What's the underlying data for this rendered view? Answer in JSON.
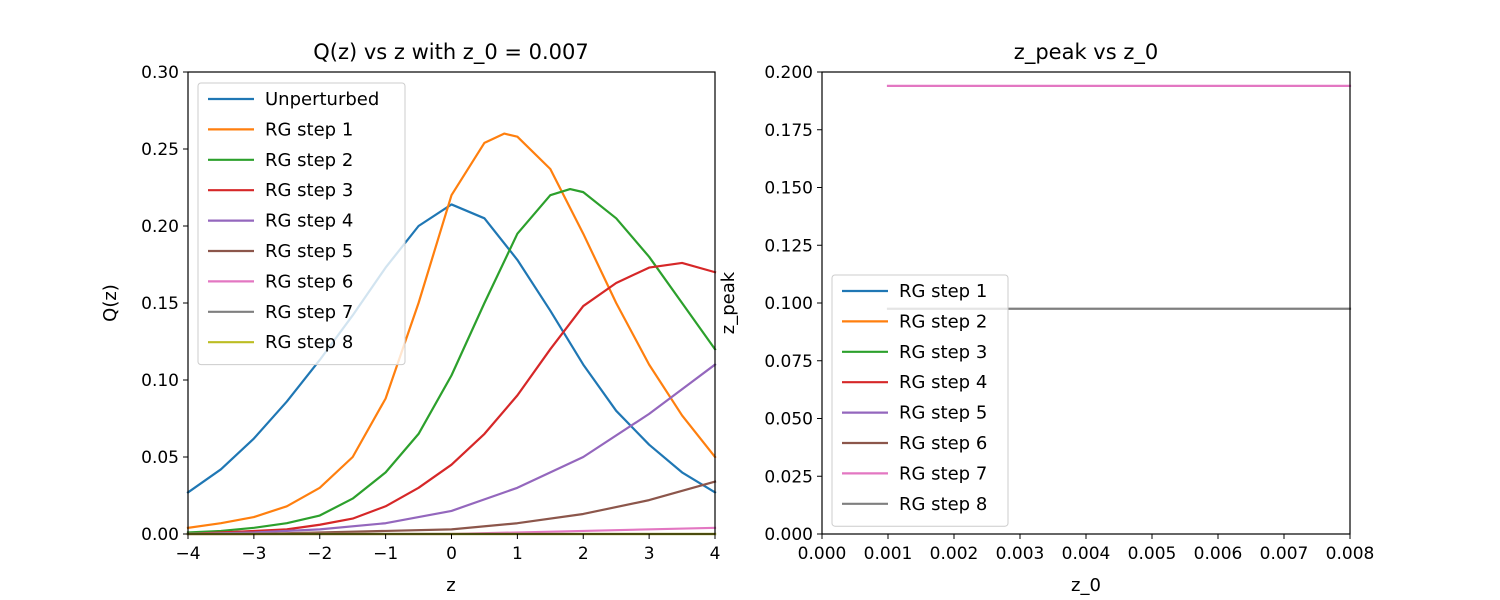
{
  "chart_data": [
    {
      "type": "line",
      "title": "Q(z) vs z with z_0 = 0.007",
      "xlabel": "z",
      "ylabel": "Q(z)",
      "xlim": [
        -4,
        4
      ],
      "ylim": [
        0,
        0.3
      ],
      "xticks": [
        "−4",
        "−3",
        "−2",
        "−1",
        "0",
        "1",
        "2",
        "3",
        "4"
      ],
      "yticks": [
        "0.00",
        "0.05",
        "0.10",
        "0.15",
        "0.20",
        "0.25",
        "0.30"
      ],
      "grid": false,
      "legend_position": "upper-left",
      "series": [
        {
          "name": "Unperturbed",
          "color": "#1f77b4",
          "x": [
            -4,
            -3.5,
            -3,
            -2.5,
            -2,
            -1.5,
            -1,
            -0.5,
            0,
            0.5,
            1,
            1.5,
            2,
            2.5,
            3,
            3.5,
            4
          ],
          "y": [
            0.027,
            0.042,
            0.062,
            0.086,
            0.113,
            0.142,
            0.173,
            0.2,
            0.214,
            0.205,
            0.178,
            0.145,
            0.11,
            0.08,
            0.058,
            0.04,
            0.027
          ]
        },
        {
          "name": "RG step 1",
          "color": "#ff7f0e",
          "x": [
            -4,
            -3.5,
            -3,
            -2.5,
            -2,
            -1.5,
            -1,
            -0.5,
            0,
            0.5,
            0.8,
            1,
            1.5,
            2,
            2.5,
            3,
            3.5,
            4
          ],
          "y": [
            0.004,
            0.007,
            0.011,
            0.018,
            0.03,
            0.05,
            0.088,
            0.15,
            0.22,
            0.254,
            0.26,
            0.258,
            0.237,
            0.195,
            0.15,
            0.11,
            0.077,
            0.05
          ]
        },
        {
          "name": "RG step 2",
          "color": "#2ca02c",
          "x": [
            -4,
            -3.5,
            -3,
            -2.5,
            -2,
            -1.5,
            -1,
            -0.5,
            0,
            0.5,
            1,
            1.5,
            1.8,
            2,
            2.5,
            3,
            3.5,
            4
          ],
          "y": [
            0.001,
            0.002,
            0.004,
            0.007,
            0.012,
            0.023,
            0.04,
            0.065,
            0.103,
            0.15,
            0.195,
            0.22,
            0.224,
            0.222,
            0.205,
            0.18,
            0.15,
            0.12
          ]
        },
        {
          "name": "RG step 3",
          "color": "#d62728",
          "x": [
            -4,
            -3.5,
            -3,
            -2.5,
            -2,
            -1.5,
            -1,
            -0.5,
            0,
            0.5,
            1,
            1.5,
            2,
            2.5,
            3,
            3.5,
            4
          ],
          "y": [
            0.0,
            0.001,
            0.002,
            0.003,
            0.006,
            0.01,
            0.018,
            0.03,
            0.045,
            0.065,
            0.09,
            0.12,
            0.148,
            0.163,
            0.173,
            0.176,
            0.17
          ]
        },
        {
          "name": "RG step 4",
          "color": "#9467bd",
          "x": [
            -4,
            -3,
            -2,
            -1,
            0,
            1,
            2,
            3,
            4
          ],
          "y": [
            0.0,
            0.001,
            0.003,
            0.007,
            0.015,
            0.03,
            0.05,
            0.078,
            0.11
          ]
        },
        {
          "name": "RG step 5",
          "color": "#8c564b",
          "x": [
            -4,
            -3,
            -2,
            -1,
            0,
            1,
            2,
            3,
            4
          ],
          "y": [
            0.0,
            0.0,
            0.001,
            0.002,
            0.003,
            0.007,
            0.013,
            0.022,
            0.034
          ]
        },
        {
          "name": "RG step 6",
          "color": "#e377c2",
          "x": [
            -4,
            -2,
            0,
            2,
            4
          ],
          "y": [
            0.0,
            0.0,
            0.0,
            0.002,
            0.004
          ]
        },
        {
          "name": "RG step 7",
          "color": "#7f7f7f",
          "x": [
            -4,
            0,
            4
          ],
          "y": [
            0.0,
            0.0,
            0.0
          ]
        },
        {
          "name": "RG step 8",
          "color": "#bcbd22",
          "x": [
            -4,
            0,
            4
          ],
          "y": [
            0.0,
            0.0,
            0.0
          ]
        }
      ]
    },
    {
      "type": "line",
      "title": "z_peak vs z_0",
      "xlabel": "z_0",
      "ylabel": "z_peak",
      "xlim": [
        0,
        0.008
      ],
      "ylim": [
        0,
        0.2
      ],
      "xticks": [
        "0.000",
        "0.001",
        "0.002",
        "0.003",
        "0.004",
        "0.005",
        "0.006",
        "0.007",
        "0.008"
      ],
      "yticks": [
        "0.000",
        "0.025",
        "0.050",
        "0.075",
        "0.100",
        "0.125",
        "0.150",
        "0.175",
        "0.200"
      ],
      "grid": false,
      "legend_position": "lower-left",
      "series": [
        {
          "name": "RG step 1",
          "color": "#1f77b4",
          "x": [],
          "y": []
        },
        {
          "name": "RG step 2",
          "color": "#ff7f0e",
          "x": [],
          "y": []
        },
        {
          "name": "RG step 3",
          "color": "#2ca02c",
          "x": [],
          "y": []
        },
        {
          "name": "RG step 4",
          "color": "#d62728",
          "x": [],
          "y": []
        },
        {
          "name": "RG step 5",
          "color": "#9467bd",
          "x": [],
          "y": []
        },
        {
          "name": "RG step 6",
          "color": "#8c564b",
          "x": [],
          "y": []
        },
        {
          "name": "RG step 7",
          "color": "#e377c2",
          "x": [
            0.001,
            0.008
          ],
          "y": [
            0.194,
            0.194
          ]
        },
        {
          "name": "RG step 8",
          "color": "#7f7f7f",
          "x": [
            0.001,
            0.008
          ],
          "y": [
            0.0975,
            0.0975
          ]
        }
      ]
    }
  ]
}
